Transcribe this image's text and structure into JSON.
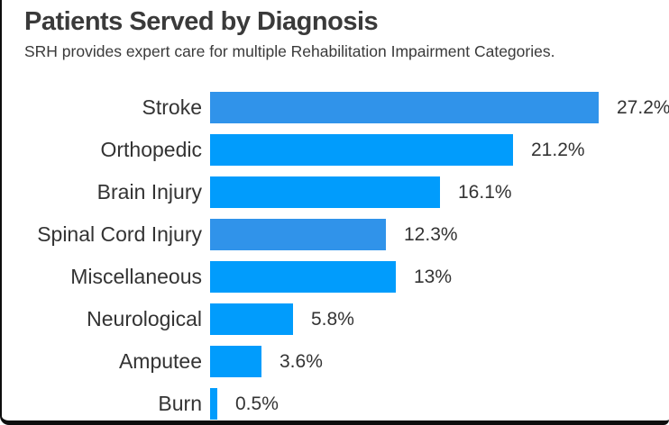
{
  "card": {
    "title": "Patients Served by Diagnosis",
    "subtitle": "SRH provides expert care for multiple Rehabilitation Impairment Categories."
  },
  "colors": {
    "bar_bright_blue": "#019CFC",
    "bar_muted_blue": "#3093EA",
    "text_dark": "#3A3A3A",
    "border_black": "#0D0D0D",
    "background": "#FFFFFF"
  },
  "chart_data": {
    "type": "bar",
    "orientation": "horizontal",
    "title": "Patients Served by Diagnosis",
    "subtitle": "SRH provides expert care for multiple Rehabilitation Impairment Categories.",
    "categories": [
      "Stroke",
      "Orthopedic",
      "Brain Injury",
      "Spinal Cord Injury",
      "Miscellaneous",
      "Neurological",
      "Amputee",
      "Burn"
    ],
    "values": [
      27.2,
      21.2,
      16.1,
      12.3,
      13,
      5.8,
      3.6,
      0.5
    ],
    "value_labels": [
      "27.2%",
      "21.2%",
      "16.1%",
      "12.3%",
      "13%",
      "5.8%",
      "3.6%",
      "0.5%"
    ],
    "bar_colors": [
      "#3093EA",
      "#019CFC",
      "#019CFC",
      "#3093EA",
      "#019CFC",
      "#019CFC",
      "#019CFC",
      "#019CFC"
    ],
    "xlabel": "",
    "ylabel": "",
    "xlim": [
      0,
      32
    ],
    "grid": false,
    "legend": false,
    "value_labels_position": "end-of-bar"
  }
}
